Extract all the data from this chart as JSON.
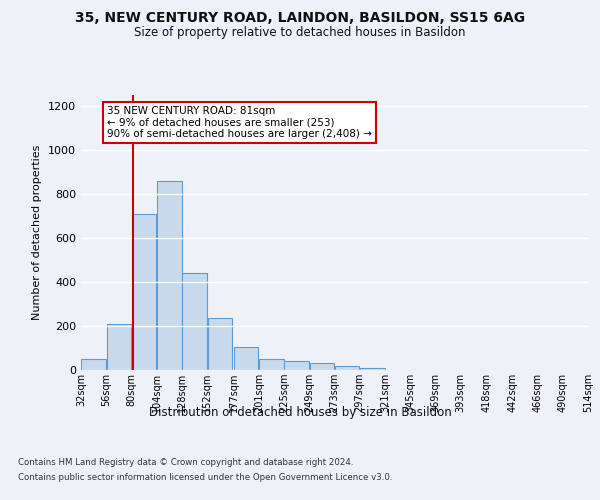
{
  "title": "35, NEW CENTURY ROAD, LAINDON, BASILDON, SS15 6AG",
  "subtitle": "Size of property relative to detached houses in Basildon",
  "xlabel": "Distribution of detached houses by size in Basildon",
  "ylabel": "Number of detached properties",
  "bar_values": [
    50,
    210,
    710,
    860,
    440,
    235,
    105,
    50,
    40,
    30,
    20,
    10,
    0,
    0,
    0,
    0,
    0,
    0,
    0,
    0
  ],
  "bin_edges": [
    32,
    56,
    80,
    104,
    128,
    152,
    177,
    201,
    225,
    249,
    273,
    297,
    321,
    345,
    369,
    393,
    418,
    442,
    466,
    490,
    514
  ],
  "tick_labels": [
    "32sqm",
    "56sqm",
    "80sqm",
    "104sqm",
    "128sqm",
    "152sqm",
    "177sqm",
    "201sqm",
    "225sqm",
    "249sqm",
    "273sqm",
    "297sqm",
    "321sqm",
    "345sqm",
    "369sqm",
    "393sqm",
    "418sqm",
    "442sqm",
    "466sqm",
    "490sqm",
    "514sqm"
  ],
  "bar_color": "#c8d9ec",
  "bar_edge_color": "#5b9bd5",
  "vline_x": 81,
  "vline_color": "#cc0000",
  "annotation_text": "35 NEW CENTURY ROAD: 81sqm\n← 9% of detached houses are smaller (253)\n90% of semi-detached houses are larger (2,408) →",
  "annotation_box_color": "#ffffff",
  "annotation_box_edge_color": "#cc0000",
  "ylim": [
    0,
    1250
  ],
  "yticks": [
    0,
    200,
    400,
    600,
    800,
    1000,
    1200
  ],
  "footer_line1": "Contains HM Land Registry data © Crown copyright and database right 2024.",
  "footer_line2": "Contains public sector information licensed under the Open Government Licence v3.0.",
  "background_color": "#eef2f8",
  "plot_background": "#eef2f8",
  "grid_color": "#ffffff"
}
